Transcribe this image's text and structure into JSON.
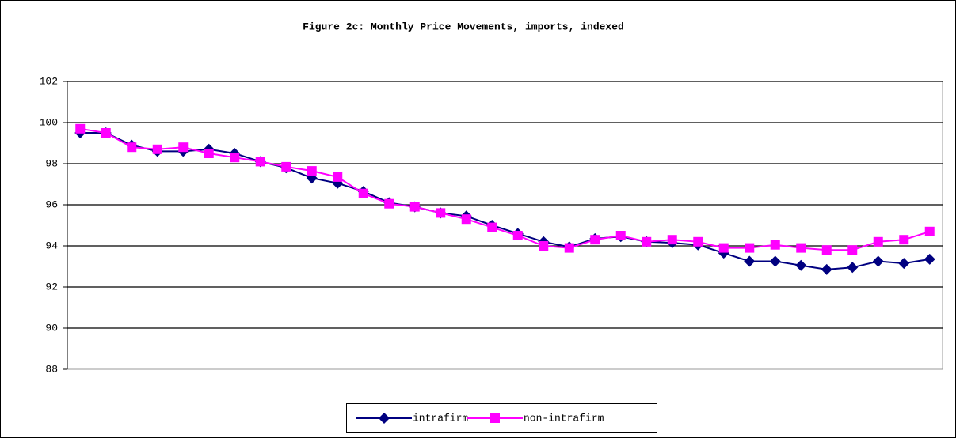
{
  "chart_data": {
    "type": "line",
    "title": "Figure 2c: Monthly Price Movements, imports, indexed",
    "categories": [
      null,
      null,
      null,
      null,
      null,
      null,
      null,
      null,
      null,
      null,
      null,
      null,
      null,
      null,
      null,
      null,
      null,
      null,
      null,
      null,
      null,
      null,
      null,
      null,
      null,
      null,
      null,
      null,
      null,
      null,
      null,
      null,
      null,
      null
    ],
    "series": [
      {
        "name": "intrafirm",
        "color": "#000080",
        "marker": "diamond",
        "values": [
          99.5,
          99.5,
          98.9,
          98.6,
          98.6,
          98.7,
          98.5,
          98.1,
          97.8,
          97.3,
          97.05,
          96.65,
          96.1,
          95.9,
          95.6,
          95.45,
          95.0,
          94.6,
          94.2,
          93.95,
          94.35,
          94.45,
          94.2,
          94.15,
          94.05,
          93.65,
          93.25,
          93.25,
          93.05,
          92.85,
          92.95,
          93.25,
          93.15,
          93.35
        ]
      },
      {
        "name": "non-intrafirm",
        "color": "#ff00ff",
        "marker": "square",
        "values": [
          99.7,
          99.5,
          98.8,
          98.7,
          98.8,
          98.5,
          98.3,
          98.1,
          97.85,
          97.65,
          97.35,
          96.55,
          96.05,
          95.9,
          95.6,
          95.3,
          94.9,
          94.5,
          94.0,
          93.9,
          94.3,
          94.5,
          94.2,
          94.3,
          94.2,
          93.9,
          93.9,
          94.05,
          93.9,
          93.8,
          93.8,
          94.2,
          94.3,
          94.7
        ]
      }
    ],
    "ylim": [
      88,
      102
    ],
    "yticks": [
      88,
      90,
      92,
      94,
      96,
      98,
      100,
      102
    ],
    "grid": true,
    "legend": "bottom"
  }
}
